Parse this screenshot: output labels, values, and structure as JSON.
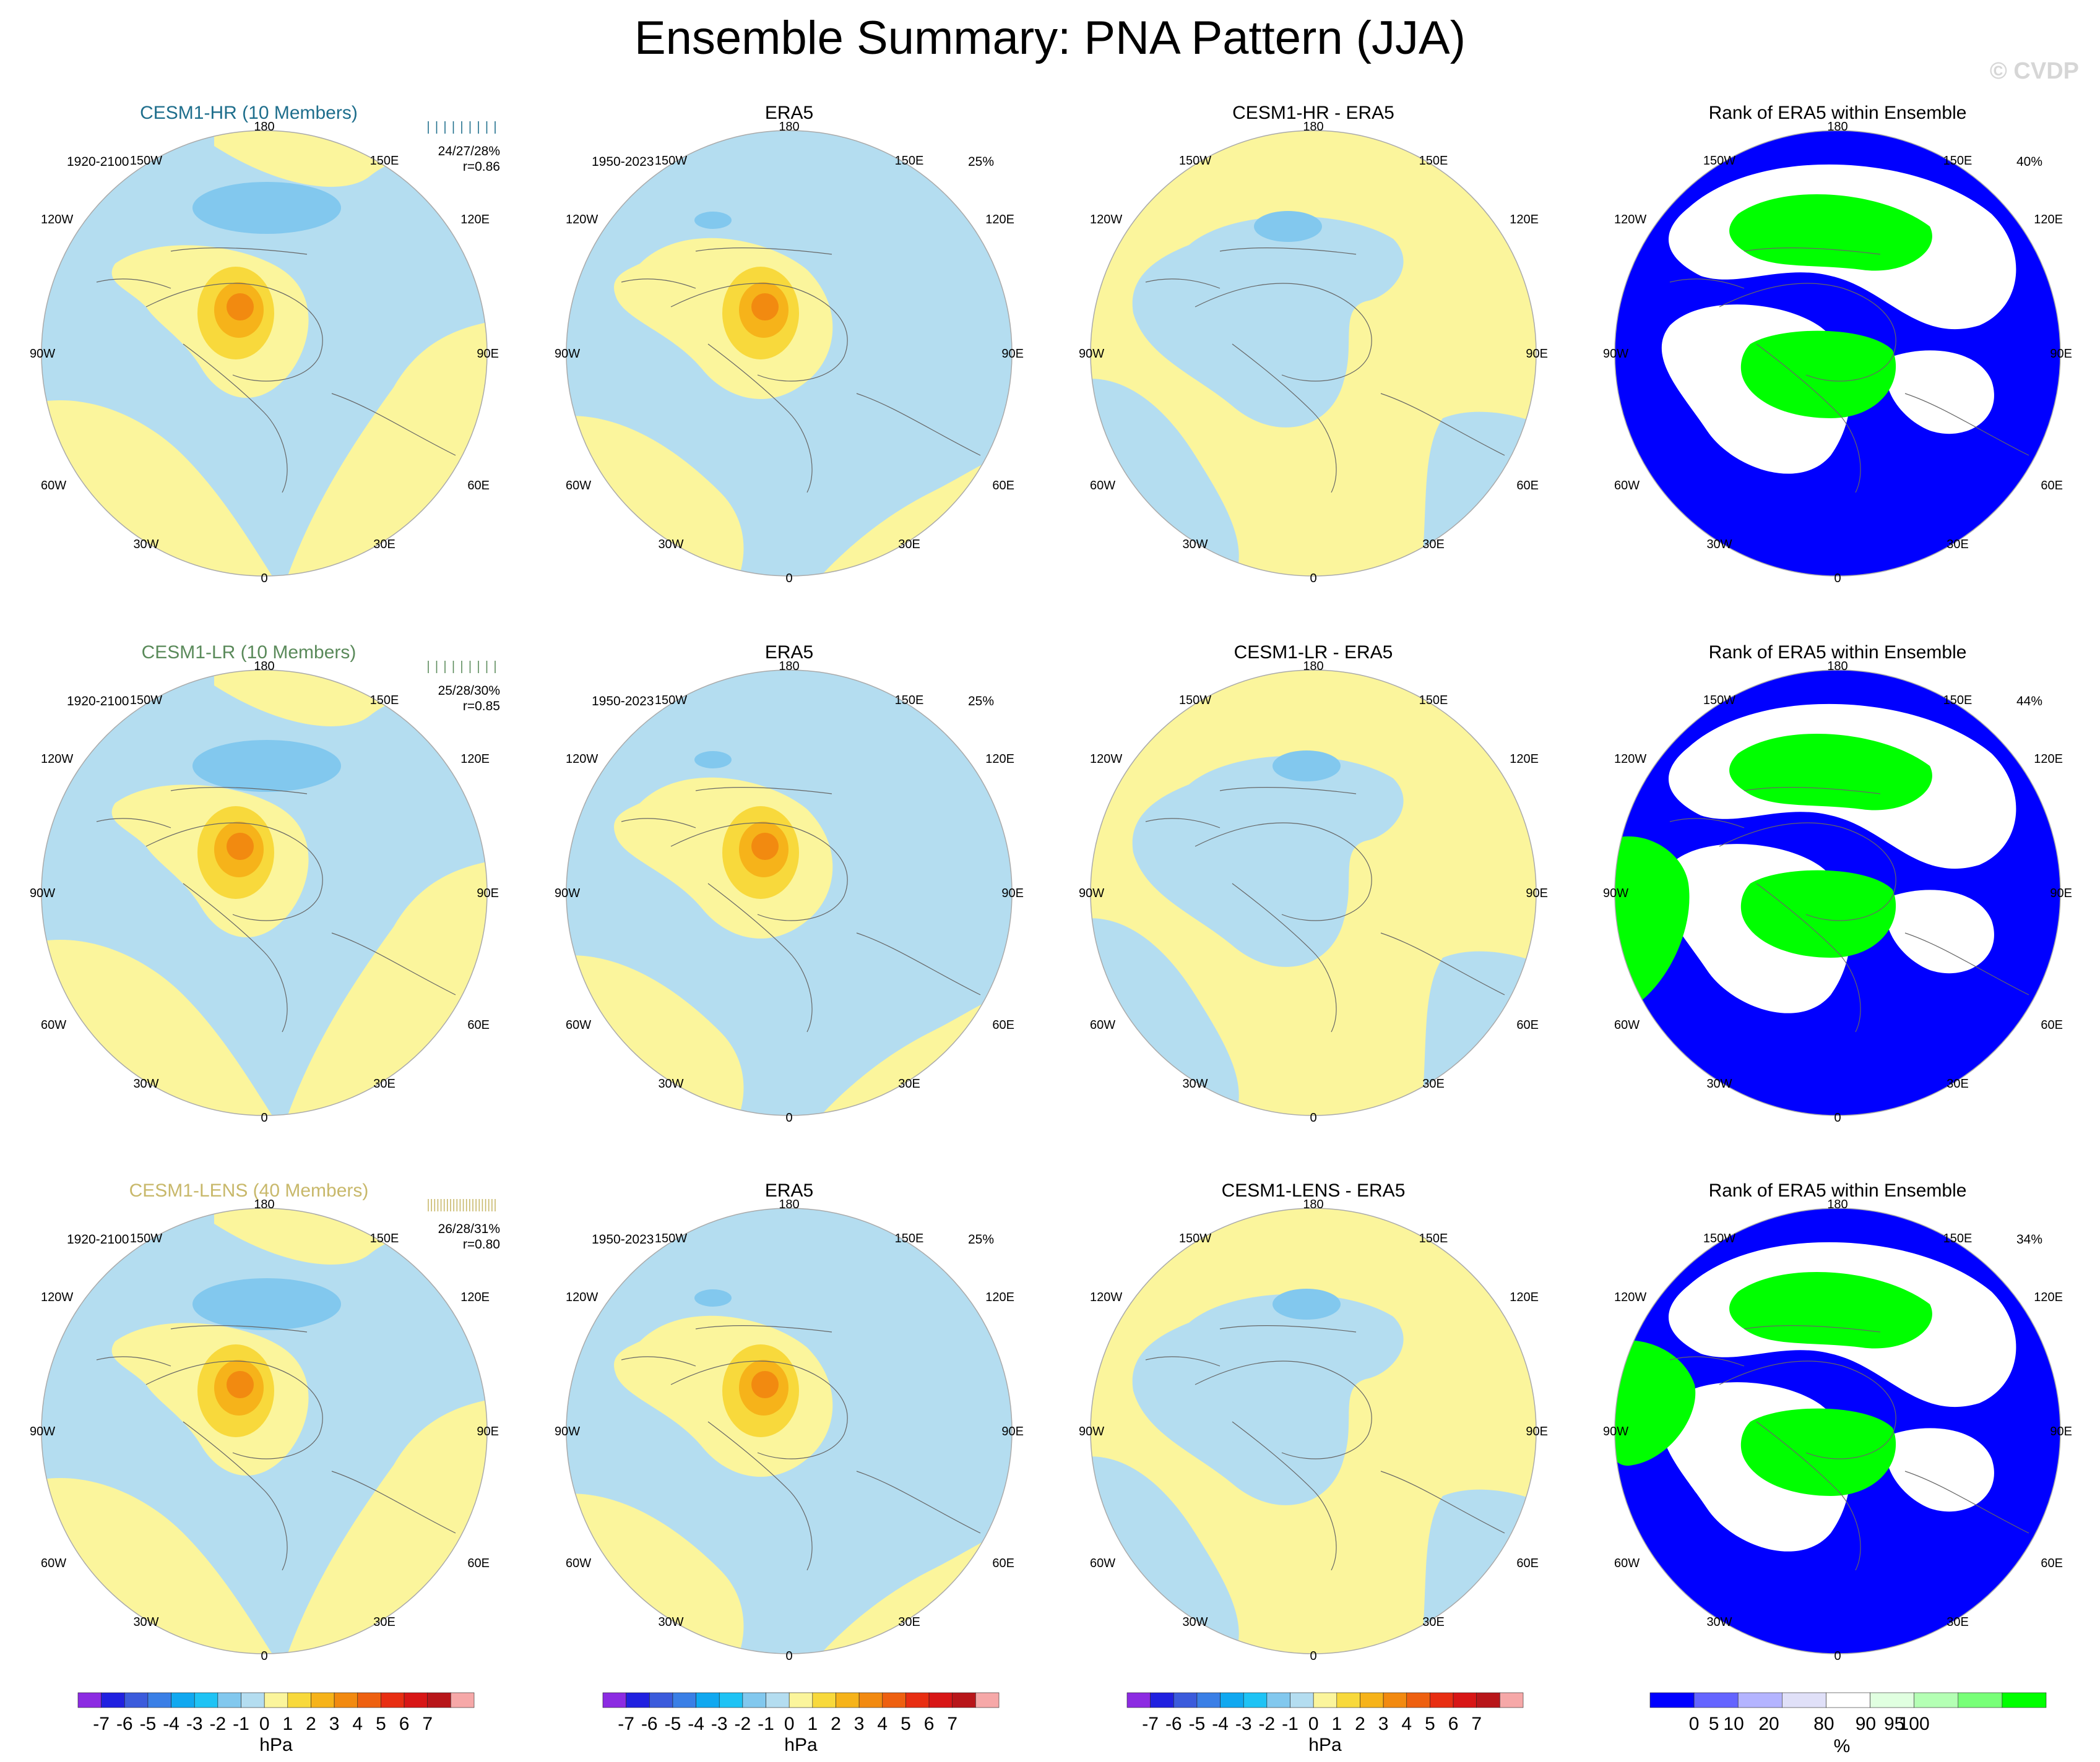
{
  "title": "Ensemble Summary: PNA Pattern (JJA)",
  "watermark": "© CVDP",
  "colors": {
    "neg7": "#8c2be2",
    "neg6": "#2020e0",
    "neg5": "#3b5bdc",
    "neg4": "#3a7fe6",
    "neg3": "#10a8f0",
    "neg2": "#1ec3f5",
    "neg1": "#82c8ee",
    "zero_neg": "#b4ddf0",
    "zero_pos": "#fbf59c",
    "pos1": "#f8d93c",
    "pos2": "#f6b31a",
    "pos3": "#f28a10",
    "pos4": "#ee6010",
    "pos5": "#e82e12",
    "pos6": "#d81616",
    "pos7": "#b8161a",
    "pos8": "#f6a8a8",
    "rank_low": "#0000ff",
    "rank_mid": "#ffffff",
    "rank_high": "#00ff00",
    "hr_label": "#1e6e8c",
    "lr_label": "#5a8a5a",
    "lens_label": "#c8b86a"
  },
  "rows": [
    {
      "model": {
        "title": "CESM1-HR (10 Members)",
        "years": "1920-2100",
        "stats_pct": "24/27/28%",
        "stats_r": "r=0.86",
        "label_color": "#1e6e8c"
      },
      "obs": {
        "title": "ERA5",
        "years": "1950-2023",
        "pct": "25%"
      },
      "diff": {
        "title": "CESM1-HR - ERA5"
      },
      "rank": {
        "title": "Rank of ERA5 within Ensemble",
        "pct": "40%"
      }
    },
    {
      "model": {
        "title": "CESM1-LR (10 Members)",
        "years": "1920-2100",
        "stats_pct": "25/28/30%",
        "stats_r": "r=0.85",
        "label_color": "#5a8a5a"
      },
      "obs": {
        "title": "ERA5",
        "years": "1950-2023",
        "pct": "25%"
      },
      "diff": {
        "title": "CESM1-LR - ERA5"
      },
      "rank": {
        "title": "Rank of ERA5 within Ensemble",
        "pct": "44%"
      }
    },
    {
      "model": {
        "title": "CESM1-LENS (40 Members)",
        "years": "1920-2100",
        "stats_pct": "26/28/31%",
        "stats_r": "r=0.80",
        "label_color": "#c8b86a"
      },
      "obs": {
        "title": "ERA5",
        "years": "1950-2023",
        "pct": "25%"
      },
      "diff": {
        "title": "CESM1-LENS - ERA5"
      },
      "rank": {
        "title": "Rank of ERA5 within Ensemble",
        "pct": "34%"
      }
    }
  ],
  "lon_labels": {
    "top": "180",
    "bottom": "0",
    "left": "90W",
    "right": "90E",
    "ul1": "150W",
    "ul2": "120W",
    "ll1": "60W",
    "ll2": "30W",
    "ur1": "150E",
    "ur2": "120E",
    "lr1": "60E",
    "lr2": "30E"
  },
  "chart_data": [
    {
      "type": "heatmap",
      "description_units": "hPa",
      "colorbar": {
        "ticks": [
          "-7",
          "-6",
          "-5",
          "-4",
          "-3",
          "-2",
          "-1",
          "0",
          "1",
          "2",
          "3",
          "4",
          "5",
          "6",
          "7"
        ],
        "unit": "hPa"
      },
      "panels_per_row": [
        "model",
        "obs",
        "diff"
      ]
    },
    {
      "type": "heatmap",
      "colorbar": {
        "ticks": [
          "0",
          "5",
          "10",
          "20",
          "80",
          "90",
          "95",
          "100"
        ],
        "unit": "%"
      },
      "panels_per_row": [
        "rank"
      ]
    }
  ]
}
